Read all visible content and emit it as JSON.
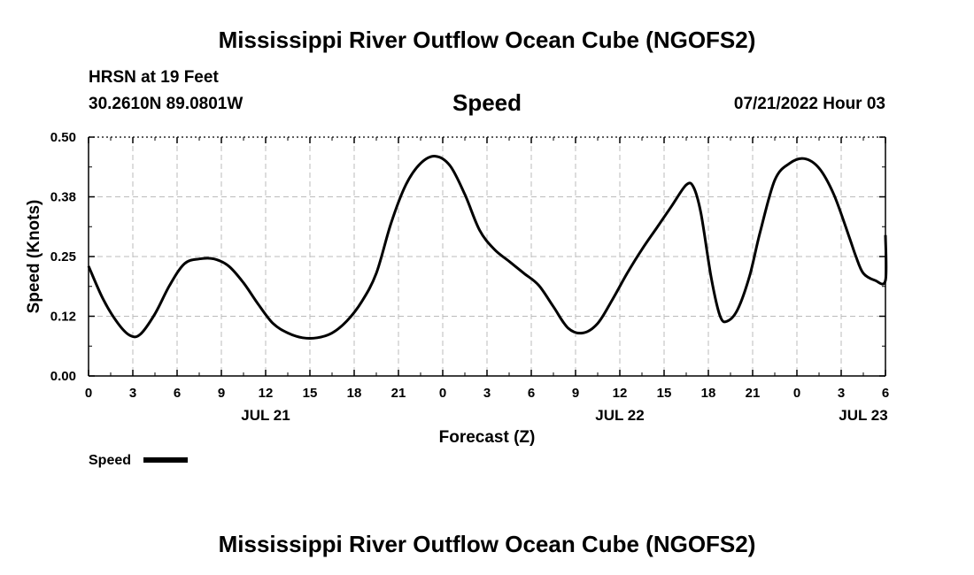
{
  "page": {
    "title_top": "Mississippi River Outflow Ocean Cube (NGOFS2)",
    "title_bottom": "Mississippi River Outflow Ocean Cube (NGOFS2)",
    "station_line": "HRSN at 19 Feet",
    "coords_line": "30.2610N  89.0801W",
    "plot_title": "Speed",
    "timestamp": "07/21/2022 Hour 03"
  },
  "chart_data": {
    "type": "line",
    "title": "Speed",
    "xlabel": "Forecast (Z)",
    "ylabel": "Speed (Knots)",
    "ylim": [
      0,
      0.5
    ],
    "xlim": [
      0,
      54
    ],
    "grid": true,
    "legend_position": "bottom-left",
    "y_ticks": [
      0,
      0.125,
      0.25,
      0.375,
      0.5
    ],
    "y_tick_labels": [
      "0.00",
      "0.12",
      "0.25",
      "0.38",
      "0.50"
    ],
    "x_ticks": [
      0,
      3,
      6,
      9,
      12,
      15,
      18,
      21,
      24,
      27,
      30,
      33,
      36,
      39,
      42,
      45,
      48,
      51,
      54
    ],
    "x_tick_labels": [
      "0",
      "3",
      "6",
      "9",
      "12",
      "15",
      "18",
      "21",
      "0",
      "3",
      "6",
      "9",
      "12",
      "15",
      "18",
      "21",
      "0",
      "3",
      "6"
    ],
    "date_labels": [
      {
        "x": 12,
        "label": "JUL 21"
      },
      {
        "x": 36,
        "label": "JUL 22"
      },
      {
        "x": 52.5,
        "label": "JUL 23"
      }
    ],
    "series": [
      {
        "name": "Speed",
        "color": "#000000",
        "x": [
          0,
          1,
          2,
          2.8,
          3.5,
          4.5,
          5.5,
          6.5,
          7.5,
          8.5,
          9.5,
          10.5,
          11.5,
          12.5,
          13.5,
          14.5,
          15.5,
          16.5,
          17.5,
          18.5,
          19.5,
          20.5,
          21.5,
          22.5,
          23.5,
          24.5,
          25.5,
          26.5,
          27.5,
          28.5,
          29.5,
          30.5,
          31.5,
          32.5,
          33.5,
          34.5,
          35.5,
          36.5,
          37.5,
          38.5,
          39.5,
          40.5,
          41,
          41.5,
          42.2,
          42.8,
          43.3,
          44,
          44.8,
          45.5,
          46.5,
          47.5,
          48.5,
          49.5,
          50.5,
          51.5,
          52,
          52.5,
          53.3,
          54
        ],
        "values": [
          0.23,
          0.16,
          0.11,
          0.085,
          0.087,
          0.13,
          0.19,
          0.235,
          0.245,
          0.245,
          0.23,
          0.195,
          0.15,
          0.11,
          0.09,
          0.08,
          0.08,
          0.09,
          0.115,
          0.155,
          0.215,
          0.32,
          0.4,
          0.445,
          0.46,
          0.44,
          0.38,
          0.305,
          0.265,
          0.24,
          0.215,
          0.19,
          0.145,
          0.1,
          0.09,
          0.11,
          0.16,
          0.215,
          0.265,
          0.31,
          0.355,
          0.4,
          0.395,
          0.34,
          0.205,
          0.125,
          0.115,
          0.14,
          0.21,
          0.3,
          0.41,
          0.445,
          0.455,
          0.435,
          0.38,
          0.295,
          0.25,
          0.215,
          0.2,
          0.2
        ]
      }
    ]
  },
  "extra_tail": {
    "x": [
      54
    ],
    "values": [
      0.295
    ]
  }
}
